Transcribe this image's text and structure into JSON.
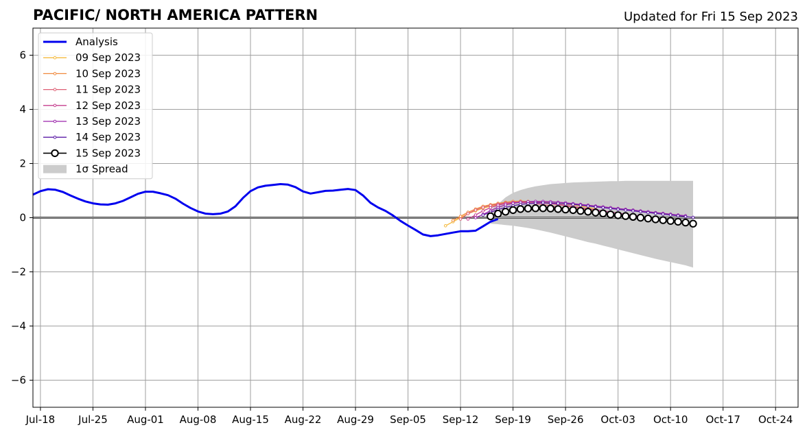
{
  "chart_data": {
    "type": "line",
    "title": "PACIFIC/ NORTH AMERICA PATTERN",
    "subtitle": "Updated for Fri 15 Sep 2023",
    "xlabel": "",
    "ylabel": "",
    "x_range": [
      "2023-07-17",
      "2023-10-27"
    ],
    "ylim": [
      -7,
      7
    ],
    "x_ticks": [
      {
        "date": "2023-07-18",
        "label": "Jul-18"
      },
      {
        "date": "2023-07-25",
        "label": "Jul-25"
      },
      {
        "date": "2023-08-01",
        "label": "Aug-01"
      },
      {
        "date": "2023-08-08",
        "label": "Aug-08"
      },
      {
        "date": "2023-08-15",
        "label": "Aug-15"
      },
      {
        "date": "2023-08-22",
        "label": "Aug-22"
      },
      {
        "date": "2023-08-29",
        "label": "Aug-29"
      },
      {
        "date": "2023-09-05",
        "label": "Sep-05"
      },
      {
        "date": "2023-09-12",
        "label": "Sep-12"
      },
      {
        "date": "2023-09-19",
        "label": "Sep-19"
      },
      {
        "date": "2023-09-26",
        "label": "Sep-26"
      },
      {
        "date": "2023-10-03",
        "label": "Oct-03"
      },
      {
        "date": "2023-10-10",
        "label": "Oct-10"
      },
      {
        "date": "2023-10-17",
        "label": "Oct-17"
      },
      {
        "date": "2023-10-24",
        "label": "Oct-24"
      }
    ],
    "y_ticks": [
      {
        "value": 6,
        "label": "6"
      },
      {
        "value": 4,
        "label": "4"
      },
      {
        "value": 2,
        "label": "2"
      },
      {
        "value": 0,
        "label": "0"
      },
      {
        "value": -2,
        "label": "−2"
      },
      {
        "value": -4,
        "label": "−4"
      },
      {
        "value": -6,
        "label": "−6"
      }
    ],
    "grid": true,
    "zero_line": true,
    "legend_position": "top-left",
    "analysis": {
      "name": "Analysis",
      "color": "#0000ee",
      "start": "2023-07-17",
      "values": [
        0.85,
        0.98,
        1.05,
        1.03,
        0.95,
        0.82,
        0.7,
        0.6,
        0.53,
        0.49,
        0.48,
        0.53,
        0.62,
        0.75,
        0.88,
        0.96,
        0.96,
        0.9,
        0.83,
        0.7,
        0.52,
        0.36,
        0.23,
        0.15,
        0.13,
        0.15,
        0.23,
        0.42,
        0.73,
        0.98,
        1.12,
        1.18,
        1.21,
        1.24,
        1.22,
        1.13,
        0.97,
        0.89,
        0.94,
        0.99,
        1.0,
        1.03,
        1.06,
        1.02,
        0.82,
        0.55,
        0.38,
        0.25,
        0.08,
        -0.12,
        -0.29,
        -0.45,
        -0.62,
        -0.68,
        -0.65,
        -0.6,
        -0.55,
        -0.5,
        -0.5,
        -0.48,
        -0.32,
        -0.15,
        -0.05
      ]
    },
    "spread": {
      "name": "1σ Spread",
      "color": "#cccccc",
      "start": "2023-09-16",
      "upper": [
        0.28,
        0.5,
        0.75,
        0.92,
        1.02,
        1.1,
        1.16,
        1.2,
        1.24,
        1.26,
        1.28,
        1.3,
        1.31,
        1.32,
        1.33,
        1.34,
        1.35,
        1.35,
        1.36,
        1.36,
        1.36,
        1.36,
        1.36,
        1.36,
        1.36,
        1.36,
        1.36,
        1.36
      ],
      "lower": [
        -0.22,
        -0.24,
        -0.27,
        -0.3,
        -0.34,
        -0.38,
        -0.43,
        -0.49,
        -0.55,
        -0.62,
        -0.69,
        -0.76,
        -0.83,
        -0.9,
        -0.96,
        -1.03,
        -1.1,
        -1.17,
        -1.24,
        -1.31,
        -1.38,
        -1.45,
        -1.52,
        -1.58,
        -1.64,
        -1.7,
        -1.76,
        -1.84
      ]
    },
    "forecasts": [
      {
        "name": "09 Sep 2023",
        "color": "#f4b93c",
        "start": "2023-09-10",
        "values": [
          -0.3,
          -0.15,
          0.0,
          0.15,
          0.25,
          0.35,
          0.42,
          0.48,
          0.52,
          0.55,
          0.57,
          0.58,
          0.58,
          0.57,
          0.55,
          0.53,
          0.5,
          0.47,
          0.43,
          0.38,
          0.33
        ]
      },
      {
        "name": "10 Sep 2023",
        "color": "#f0883c",
        "start": "2023-09-11",
        "values": [
          -0.1,
          0.05,
          0.2,
          0.32,
          0.42,
          0.48,
          0.53,
          0.57,
          0.6,
          0.61,
          0.6,
          0.58,
          0.55,
          0.52,
          0.48,
          0.44,
          0.39,
          0.34,
          0.29,
          0.24
        ]
      },
      {
        "name": "11 Sep 2023",
        "color": "#de5e74",
        "start": "2023-09-12",
        "values": [
          -0.05,
          0.15,
          0.28,
          0.38,
          0.45,
          0.5,
          0.54,
          0.56,
          0.56,
          0.55,
          0.52,
          0.48,
          0.44,
          0.39,
          0.34,
          0.29,
          0.24,
          0.19
        ]
      },
      {
        "name": "12 Sep 2023",
        "color": "#c43e8e",
        "start": "2023-09-13",
        "values": [
          -0.05,
          0.1,
          0.25,
          0.37,
          0.46,
          0.52,
          0.56,
          0.58,
          0.58,
          0.57,
          0.55,
          0.52,
          0.49,
          0.45,
          0.41,
          0.37,
          0.33,
          0.29,
          0.25,
          0.21,
          0.17,
          0.13,
          0.09,
          0.05
        ]
      },
      {
        "name": "13 Sep 2023",
        "color": "#9a23aa",
        "start": "2023-09-14",
        "values": [
          0.0,
          0.12,
          0.26,
          0.38,
          0.47,
          0.53,
          0.57,
          0.59,
          0.6,
          0.6,
          0.59,
          0.57,
          0.55,
          0.52,
          0.49,
          0.46,
          0.43,
          0.4,
          0.37,
          0.34,
          0.31,
          0.28,
          0.25,
          0.22,
          0.19,
          0.16,
          0.13,
          0.1,
          0.07
        ]
      },
      {
        "name": "14 Sep 2023",
        "color": "#5a1aa6",
        "start": "2023-09-15",
        "values": [
          0.1,
          0.2,
          0.3,
          0.38,
          0.44,
          0.49,
          0.52,
          0.54,
          0.55,
          0.54,
          0.53,
          0.51,
          0.49,
          0.46,
          0.43,
          0.4,
          0.37,
          0.34,
          0.31,
          0.28,
          0.25,
          0.22,
          0.19,
          0.16,
          0.13,
          0.1,
          0.07,
          0.04,
          0.01
        ]
      },
      {
        "name": "15 Sep 2023",
        "color": "#000000",
        "start": "2023-09-16",
        "values": [
          0.05,
          0.15,
          0.22,
          0.28,
          0.32,
          0.34,
          0.35,
          0.35,
          0.34,
          0.32,
          0.3,
          0.28,
          0.25,
          0.22,
          0.19,
          0.16,
          0.12,
          0.09,
          0.06,
          0.03,
          0.0,
          -0.03,
          -0.06,
          -0.09,
          -0.12,
          -0.15,
          -0.18,
          -0.22
        ]
      }
    ]
  }
}
